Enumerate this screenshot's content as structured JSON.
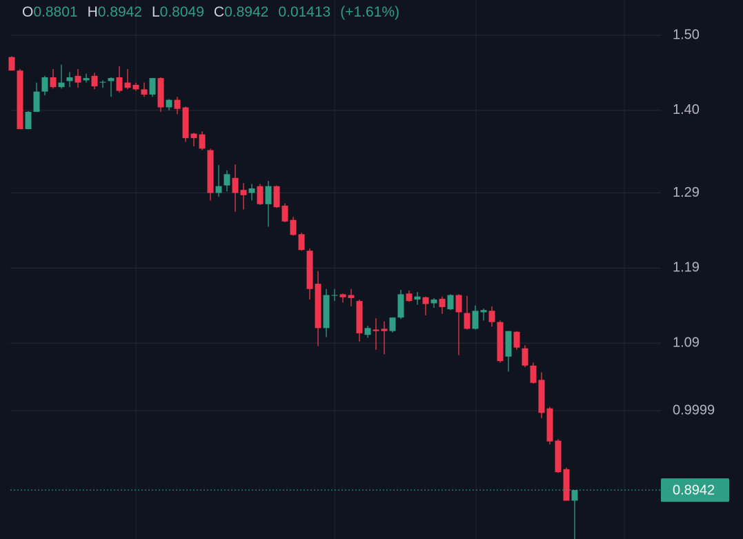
{
  "chart_data": {
    "type": "candlestick",
    "legend": [
      {
        "label": "O",
        "value": 0.8801
      },
      {
        "label": "H",
        "value": 0.8942
      },
      {
        "label": "L",
        "value": 0.8049
      },
      {
        "label": "C",
        "value": 0.8942
      }
    ],
    "change": 0.01413,
    "change_percent": {
      "value": 1.61,
      "label": "(+1.61%)"
    },
    "last_price": 0.8942,
    "up_color": "#2e9e85",
    "down_color": "#f0364f",
    "grid": true,
    "ylim": [
      0.829,
      1.547
    ],
    "yticks": [
      {
        "value": 1.5,
        "label": "1.50"
      },
      {
        "value": 1.4,
        "label": "1.40"
      },
      1.29,
      1.19,
      1.09,
      0.9999
    ],
    "open": [
      1.471,
      1.453,
      1.375,
      1.398,
      1.425,
      1.444,
      1.431,
      1.439,
      1.446,
      1.44,
      1.446,
      1.437,
      1.439,
      1.444,
      1.437,
      1.434,
      1.428,
      1.421,
      1.443,
      1.404,
      1.414,
      1.404,
      1.369,
      1.368,
      1.347,
      1.29,
      1.3,
      1.31,
      1.294,
      1.29,
      1.299,
      1.275,
      1.299,
      1.273,
      1.254,
      1.235,
      1.213,
      1.169,
      1.11,
      1.153,
      1.155,
      1.154,
      1.146,
      1.101,
      1.108,
      1.109,
      1.106,
      1.124,
      1.156,
      1.148,
      1.151,
      1.143,
      1.149,
      1.135,
      1.154,
      1.13,
      1.109,
      1.131,
      1.133,
      1.118,
      1.072,
      1.105,
      1.083,
      1.06,
      1.041,
      1.003,
      0.96,
      0.922,
      0.8801
    ],
    "high": [
      1.472,
      1.455,
      1.399,
      1.437,
      1.446,
      1.455,
      1.461,
      1.451,
      1.455,
      1.449,
      1.45,
      1.44,
      1.444,
      1.459,
      1.455,
      1.437,
      1.437,
      1.443,
      1.444,
      1.415,
      1.418,
      1.405,
      1.37,
      1.372,
      1.349,
      1.327,
      1.32,
      1.328,
      1.303,
      1.302,
      1.302,
      1.306,
      1.3,
      1.276,
      1.258,
      1.237,
      1.216,
      1.186,
      1.162,
      1.162,
      1.156,
      1.162,
      1.148,
      1.113,
      1.123,
      1.119,
      1.124,
      1.161,
      1.16,
      1.158,
      1.152,
      1.15,
      1.152,
      1.155,
      1.155,
      1.153,
      1.14,
      1.136,
      1.139,
      1.12,
      1.106,
      1.106,
      1.087,
      1.064,
      1.051,
      1.005,
      0.962,
      0.924,
      0.8942
    ],
    "low": [
      1.453,
      1.375,
      1.375,
      1.398,
      1.42,
      1.429,
      1.429,
      1.431,
      1.43,
      1.437,
      1.428,
      1.43,
      1.418,
      1.424,
      1.428,
      1.426,
      1.418,
      1.418,
      1.398,
      1.4,
      1.395,
      1.358,
      1.352,
      1.347,
      1.28,
      1.285,
      1.292,
      1.265,
      1.268,
      1.28,
      1.274,
      1.245,
      1.27,
      1.251,
      1.233,
      1.213,
      1.148,
      1.086,
      1.098,
      1.146,
      1.144,
      1.139,
      1.092,
      1.097,
      1.081,
      1.075,
      1.104,
      1.122,
      1.145,
      1.141,
      1.127,
      1.137,
      1.129,
      1.134,
      1.074,
      1.108,
      1.108,
      1.12,
      1.112,
      1.064,
      1.052,
      1.081,
      1.058,
      1.036,
      0.99,
      0.955,
      0.917,
      0.88,
      0.8049
    ],
    "close": [
      1.453,
      1.375,
      1.398,
      1.425,
      1.444,
      1.431,
      1.437,
      1.444,
      1.437,
      1.443,
      1.432,
      1.438,
      1.443,
      1.426,
      1.43,
      1.428,
      1.421,
      1.443,
      1.404,
      1.414,
      1.402,
      1.363,
      1.363,
      1.349,
      1.29,
      1.299,
      1.315,
      1.29,
      1.287,
      1.296,
      1.275,
      1.299,
      1.271,
      1.252,
      1.234,
      1.214,
      1.162,
      1.11,
      1.154,
      1.154,
      1.151,
      1.15,
      1.103,
      1.11,
      1.106,
      1.106,
      1.124,
      1.155,
      1.146,
      1.152,
      1.142,
      1.148,
      1.138,
      1.154,
      1.131,
      1.109,
      1.133,
      1.134,
      1.118,
      1.066,
      1.106,
      1.084,
      1.06,
      1.037,
      0.997,
      0.959,
      0.918,
      0.88,
      0.8942
    ]
  }
}
